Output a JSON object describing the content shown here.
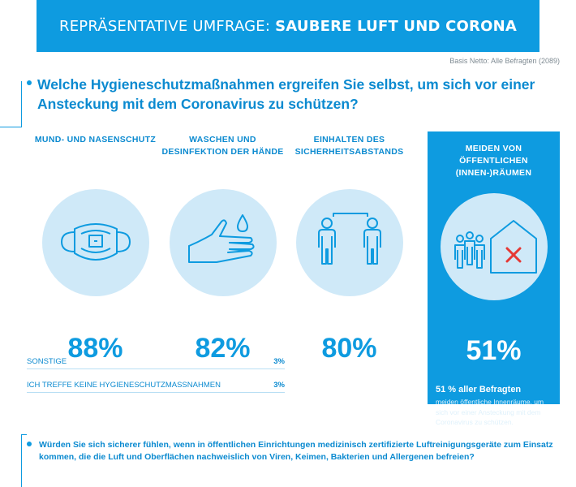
{
  "header": {
    "title_prefix": "REPRÄSENTATIVE UMFRAGE:",
    "title_main": "SAUBERE LUFT UND CORONA"
  },
  "basis": "Basis Netto: Alle Befragten (2089)",
  "question": "Welche Hygieneschutzmaßnahmen ergreifen Sie selbst, um sich vor einer Ansteckung mit dem Coronavirus zu schützen?",
  "measures": [
    {
      "label": "MUND- UND NASENSCHUTZ",
      "value": "88%",
      "icon": "mask-icon"
    },
    {
      "label": "WASCHEN UND DESINFEKTION DER HÄNDE",
      "value": "82%",
      "icon": "hand-drop-icon"
    },
    {
      "label": "EINHALTEN DES SICHERHEITSABSTANDS",
      "value": "80%",
      "icon": "distance-people-icon"
    },
    {
      "label": "MEIDEN VON ÖFFENTLICHEN (INNEN-)RÄUMEN",
      "value": "51%",
      "icon": "house-cross-icon"
    }
  ],
  "highlight_note": {
    "strong": "51 % aller Befragten",
    "text": "meiden öffentliche Innenräume, um sich vor einer Ansteckung mit dem Coronavirus zu schützen."
  },
  "others": [
    {
      "label": "SONSTIGE",
      "value": "3%"
    },
    {
      "label": "ICH TREFFE KEINE HYGIENESCHUTZMASSNAHMEN",
      "value": "3%"
    }
  ],
  "bottom_question": "Würden Sie sich sicherer fühlen, wenn in öffentlichen Einrichtungen medizinisch zertifizierte Luftreinigungsgeräte zum Einsatz kommen, die die Luft und Oberflächen nachweislich von Viren, Keimen, Bakterien und Allergenen befreien?",
  "colors": {
    "accent": "#0e9be0",
    "circle": "#cfe9f8",
    "cross": "#e53935"
  }
}
